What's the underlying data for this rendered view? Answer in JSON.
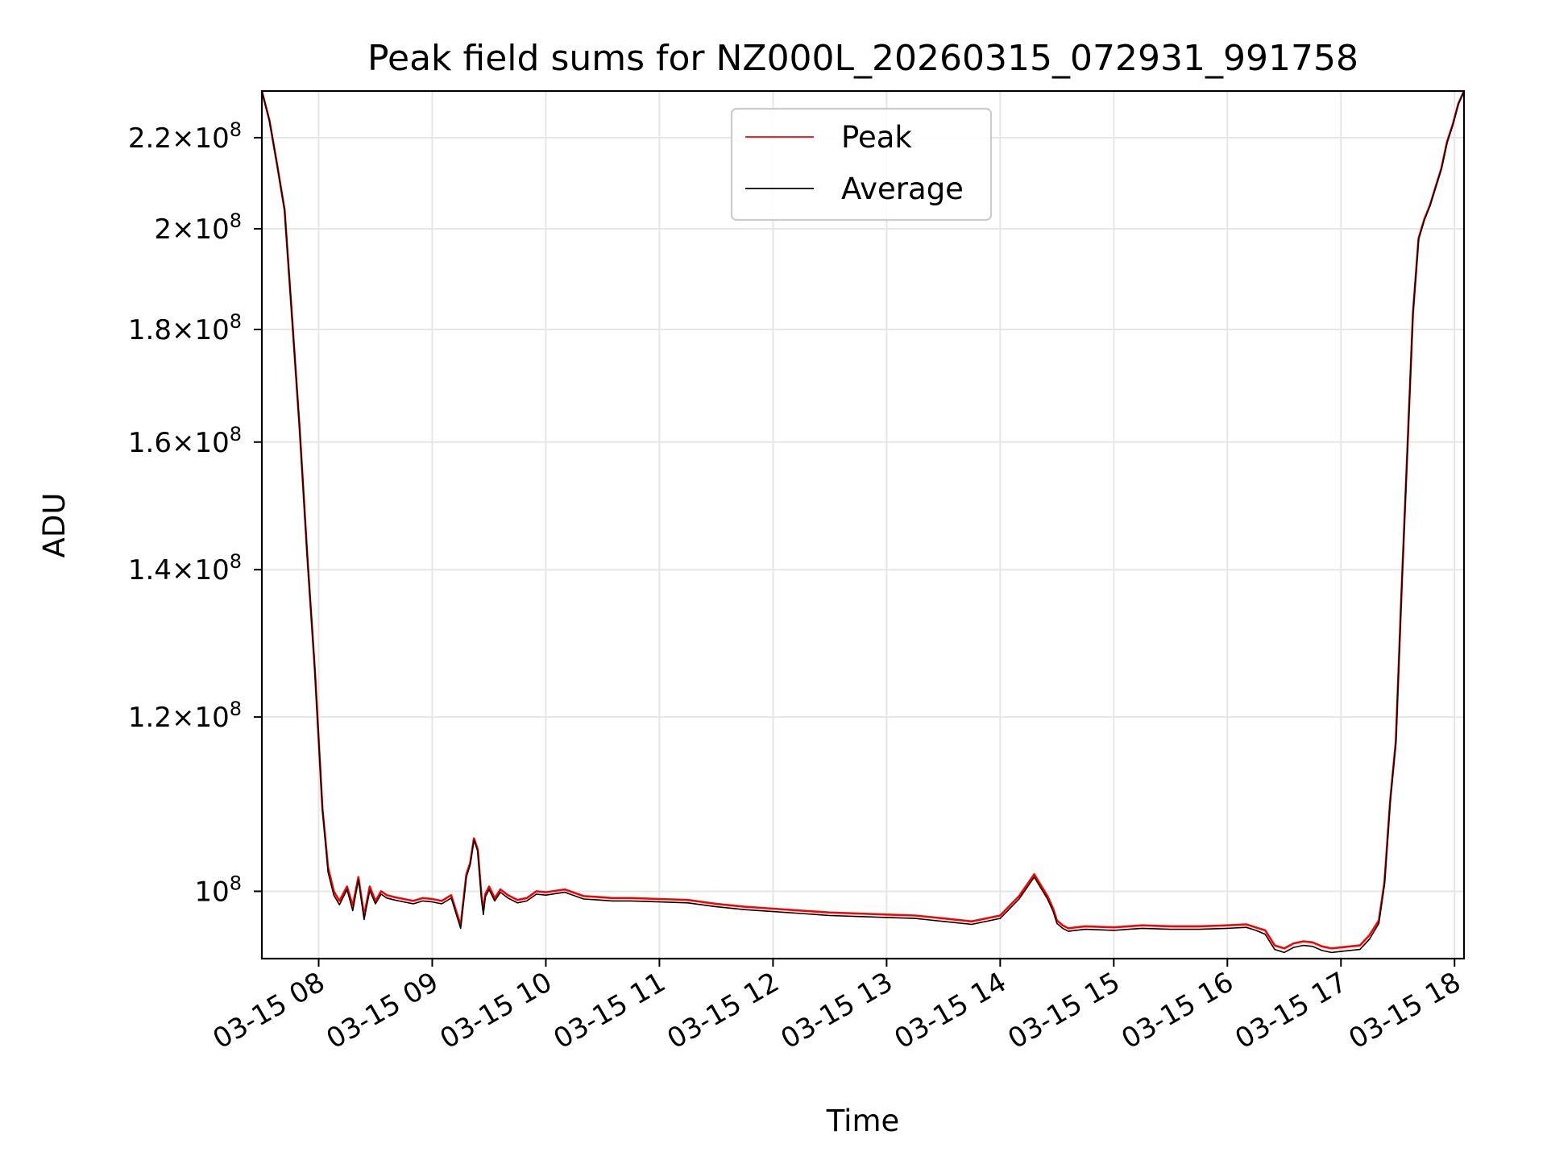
{
  "chart_data": {
    "type": "line",
    "title": "Peak field sums for NZ000L_20260315_072931_991758",
    "xlabel": "Time",
    "ylabel": "ADU",
    "y_scale": "log",
    "grid": true,
    "legend_placement": "upper center",
    "x_range": [
      "03-15 07:30",
      "03-15 18:05"
    ],
    "y_range": [
      93200000,
      231000000
    ],
    "x_tick_labels": [
      "03-15 08",
      "03-15 09",
      "03-15 10",
      "03-15 11",
      "03-15 12",
      "03-15 13",
      "03-15 14",
      "03-15 15",
      "03-15 16",
      "03-15 17",
      "03-15 18"
    ],
    "y_ticks": [
      {
        "value": 100000000,
        "mant": "",
        "base": "10",
        "exp": "8"
      },
      {
        "value": 120000000,
        "mant": "1.2",
        "base": "10",
        "exp": "8"
      },
      {
        "value": 140000000,
        "mant": "1.4",
        "base": "10",
        "exp": "8"
      },
      {
        "value": 160000000,
        "mant": "1.6",
        "base": "10",
        "exp": "8"
      },
      {
        "value": 180000000,
        "mant": "1.8",
        "base": "10",
        "exp": "8"
      },
      {
        "value": 200000000,
        "mant": "2",
        "base": "10",
        "exp": "8"
      },
      {
        "value": 220000000,
        "mant": "2.2",
        "base": "10",
        "exp": "8"
      }
    ],
    "series": [
      {
        "name": "Peak",
        "color": "#ff0000",
        "x": [
          "07:30",
          "07:34",
          "07:38",
          "07:42",
          "07:46",
          "07:50",
          "07:54",
          "07:58",
          "08:02",
          "08:05",
          "08:08",
          "08:11",
          "08:15",
          "08:18",
          "08:21",
          "08:24",
          "08:27",
          "08:30",
          "08:33",
          "08:36",
          "08:40",
          "08:45",
          "08:50",
          "08:55",
          "09:00",
          "09:05",
          "09:10",
          "09:15",
          "09:18",
          "09:20",
          "09:22",
          "09:24",
          "09:26",
          "09:27",
          "09:28",
          "09:30",
          "09:33",
          "09:36",
          "09:40",
          "09:45",
          "09:50",
          "09:55",
          "10:00",
          "10:10",
          "10:20",
          "10:28",
          "10:35",
          "10:45",
          "11:00",
          "11:15",
          "11:30",
          "11:45",
          "12:00",
          "12:15",
          "12:30",
          "12:45",
          "13:00",
          "13:15",
          "13:30",
          "13:45",
          "14:00",
          "14:10",
          "14:18",
          "14:25",
          "14:28",
          "14:30",
          "14:33",
          "14:36",
          "14:40",
          "14:45",
          "15:00",
          "15:15",
          "15:30",
          "15:45",
          "16:00",
          "16:10",
          "16:15",
          "16:20",
          "16:25",
          "16:30",
          "16:35",
          "16:40",
          "16:45",
          "16:50",
          "16:55",
          "17:00",
          "17:10",
          "17:15",
          "17:20",
          "17:23",
          "17:26",
          "17:29",
          "17:32",
          "17:35",
          "17:38",
          "17:41",
          "17:44",
          "17:47",
          "17:50",
          "17:53",
          "17:56",
          "17:59",
          "18:02",
          "18:05"
        ],
        "y": [
          231000000,
          224000000,
          214000000,
          204000000,
          182000000,
          162000000,
          142000000,
          126000000,
          109000000,
          102500000,
          100000000,
          99000000,
          100500000,
          98500000,
          101500000,
          97500000,
          100500000,
          99000000,
          100000000,
          99600000,
          99400000,
          99200000,
          99000000,
          99300000,
          99200000,
          99000000,
          99600000,
          96500000,
          101800000,
          103000000,
          105700000,
          104500000,
          99500000,
          98000000,
          99700000,
          100500000,
          99300000,
          100200000,
          99600000,
          99100000,
          99300000,
          100000000,
          99900000,
          100200000,
          99500000,
          99400000,
          99300000,
          99300000,
          99200000,
          99100000,
          98700000,
          98400000,
          98200000,
          98000000,
          97800000,
          97700000,
          97600000,
          97500000,
          97200000,
          96900000,
          97500000,
          99500000,
          101800000,
          99500000,
          98200000,
          97000000,
          96500000,
          96200000,
          96300000,
          96400000,
          96300000,
          96500000,
          96400000,
          96400000,
          96500000,
          96600000,
          96300000,
          96000000,
          94500000,
          94200000,
          94700000,
          94900000,
          94800000,
          94400000,
          94200000,
          94300000,
          94500000,
          95500000,
          97000000,
          101000000,
          110000000,
          117000000,
          137000000,
          158000000,
          183000000,
          198000000,
          202000000,
          205000000,
          209000000,
          213000000,
          219000000,
          223000000,
          228000000,
          231000000
        ]
      },
      {
        "name": "Average",
        "color": "#000000",
        "x": [
          "07:30",
          "07:34",
          "07:38",
          "07:42",
          "07:46",
          "07:50",
          "07:54",
          "07:58",
          "08:02",
          "08:05",
          "08:08",
          "08:11",
          "08:15",
          "08:18",
          "08:21",
          "08:24",
          "08:27",
          "08:30",
          "08:33",
          "08:36",
          "08:40",
          "08:45",
          "08:50",
          "08:55",
          "09:00",
          "09:05",
          "09:10",
          "09:15",
          "09:18",
          "09:20",
          "09:22",
          "09:24",
          "09:26",
          "09:27",
          "09:28",
          "09:30",
          "09:33",
          "09:36",
          "09:40",
          "09:45",
          "09:50",
          "09:55",
          "10:00",
          "10:10",
          "10:20",
          "10:28",
          "10:35",
          "10:45",
          "11:00",
          "11:15",
          "11:30",
          "11:45",
          "12:00",
          "12:15",
          "12:30",
          "12:45",
          "13:00",
          "13:15",
          "13:30",
          "13:45",
          "14:00",
          "14:10",
          "14:18",
          "14:25",
          "14:28",
          "14:30",
          "14:33",
          "14:36",
          "14:40",
          "14:45",
          "15:00",
          "15:15",
          "15:30",
          "15:45",
          "16:00",
          "16:10",
          "16:15",
          "16:20",
          "16:25",
          "16:30",
          "16:35",
          "16:40",
          "16:45",
          "16:50",
          "16:55",
          "17:00",
          "17:10",
          "17:15",
          "17:20",
          "17:23",
          "17:26",
          "17:29",
          "17:32",
          "17:35",
          "17:38",
          "17:41",
          "17:44",
          "17:47",
          "17:50",
          "17:53",
          "17:56",
          "17:59",
          "18:02",
          "18:05"
        ],
        "y": [
          231000000,
          224000000,
          214000000,
          204000000,
          182000000,
          162000000,
          142000000,
          126000000,
          109000000,
          102000000,
          99600000,
          98600000,
          100200000,
          98000000,
          101200000,
          97100000,
          100100000,
          98700000,
          99700000,
          99300000,
          99100000,
          98900000,
          98700000,
          99000000,
          98900000,
          98700000,
          99300000,
          96200000,
          101500000,
          102800000,
          105500000,
          104300000,
          99200000,
          97600000,
          99400000,
          100200000,
          99000000,
          99900000,
          99300000,
          98800000,
          99000000,
          99700000,
          99600000,
          99900000,
          99200000,
          99100000,
          99000000,
          99000000,
          98900000,
          98800000,
          98400000,
          98100000,
          97900000,
          97700000,
          97500000,
          97400000,
          97300000,
          97200000,
          96900000,
          96600000,
          97200000,
          99200000,
          101500000,
          99200000,
          97900000,
          96700000,
          96200000,
          95900000,
          96000000,
          96100000,
          96000000,
          96200000,
          96100000,
          96100000,
          96200000,
          96300000,
          96000000,
          95600000,
          94100000,
          93800000,
          94300000,
          94500000,
          94400000,
          94000000,
          93800000,
          93900000,
          94100000,
          95100000,
          96700000,
          100700000,
          109800000,
          116800000,
          136800000,
          157800000,
          182800000,
          197800000,
          201800000,
          204800000,
          208800000,
          212800000,
          218800000,
          222800000,
          227800000,
          231000000
        ]
      }
    ]
  }
}
